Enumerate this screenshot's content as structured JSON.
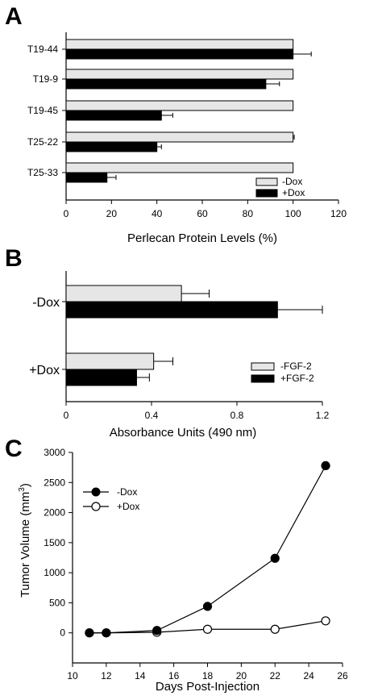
{
  "chart_data": [
    {
      "type": "bar",
      "panel_label": "A",
      "orientation": "horizontal",
      "categories": [
        "T19-44",
        "T19-9",
        "T19-45",
        "T25-22",
        "T25-33"
      ],
      "series": [
        {
          "name": "-Dox",
          "values": [
            100,
            100,
            100,
            100,
            100
          ],
          "errors": [
            0,
            0,
            0,
            0.5,
            0
          ],
          "color": "#e6e6e6"
        },
        {
          "name": "+Dox",
          "values": [
            100,
            88,
            42,
            40,
            18
          ],
          "errors": [
            8,
            6,
            5,
            2,
            4
          ],
          "color": "#000000"
        }
      ],
      "xlabel": "Perlecan Protein Levels (%)",
      "xlim": [
        0,
        120
      ],
      "xticks": [
        "0",
        "20",
        "40",
        "60",
        "80",
        "100",
        "120"
      ],
      "legend_position": "bottom-right",
      "grid": false
    },
    {
      "type": "bar",
      "panel_label": "B",
      "orientation": "horizontal",
      "categories": [
        "-Dox",
        "+Dox"
      ],
      "series": [
        {
          "name": "-FGF-2",
          "values": [
            0.54,
            0.41
          ],
          "errors": [
            0.13,
            0.09
          ],
          "color": "#e6e6e6"
        },
        {
          "name": "+FGF-2",
          "values": [
            0.99,
            0.33
          ],
          "errors": [
            0.21,
            0.06
          ],
          "color": "#000000"
        }
      ],
      "xlabel": "Absorbance Units (490 nm)",
      "xlim": [
        0,
        1.2
      ],
      "xticks": [
        "0",
        "0.4",
        "0.8",
        "1.2"
      ],
      "legend_position": "bottom-right",
      "grid": false
    },
    {
      "type": "line",
      "panel_label": "C",
      "series": [
        {
          "name": "-Dox",
          "marker": "filled-circle",
          "x": [
            11,
            12,
            15,
            18,
            22,
            25
          ],
          "y": [
            0,
            0,
            40,
            440,
            1240,
            2780
          ]
        },
        {
          "name": "+Dox",
          "marker": "open-circle",
          "x": [
            11,
            12,
            15,
            18,
            22,
            25
          ],
          "y": [
            0,
            0,
            10,
            60,
            60,
            200
          ]
        }
      ],
      "xlabel": "Days Post-Injection",
      "ylabel_main": "Tumor Volume (mm",
      "ylabel_sup": "3",
      "ylabel_close": ")",
      "xlim": [
        10,
        26
      ],
      "ylim": [
        -500,
        3000
      ],
      "xticks": [
        "10",
        "12",
        "14",
        "16",
        "18",
        "20",
        "22",
        "24",
        "26"
      ],
      "yticks": [
        "0",
        "500",
        "1000",
        "1500",
        "2000",
        "2500",
        "3000"
      ],
      "legend_position": "top-left",
      "grid": false
    }
  ]
}
